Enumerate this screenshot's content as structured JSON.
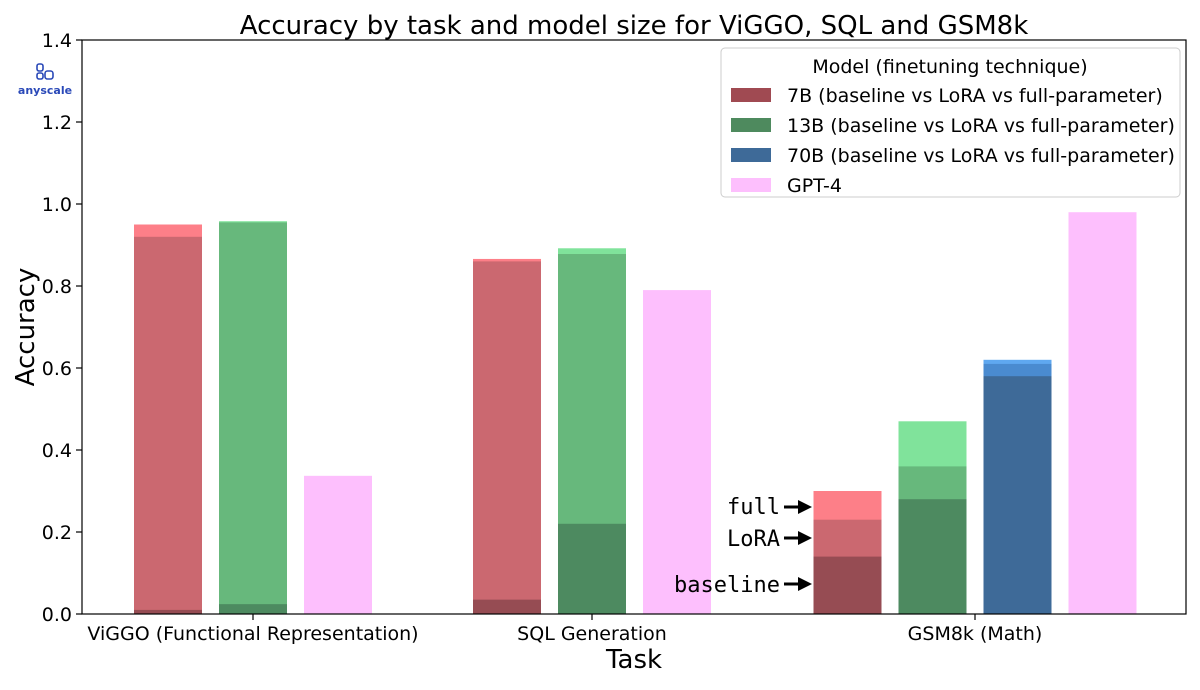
{
  "logo": {
    "text": "anyscale",
    "color": "#2a49b8"
  },
  "chart_data": {
    "type": "bar",
    "title": "Accuracy by task and model size for ViGGO, SQL and GSM8k",
    "xlabel": "Task",
    "ylabel": "Accuracy",
    "ylim": [
      0,
      1.4
    ],
    "yticks": [
      "0.0",
      "0.2",
      "0.4",
      "0.6",
      "0.8",
      "1.0",
      "1.2",
      "1.4"
    ],
    "grid": false,
    "legend_placement": "top-right",
    "legend_title": "Model (finetuning technique)",
    "categories": [
      "ViGGO (Functional Representation)",
      "SQL Generation",
      "GSM8k (Math)"
    ],
    "series": [
      {
        "name": "7B (baseline vs LoRA vs full-parameter)",
        "legend_color": "#a04a52",
        "colors": {
          "baseline": "#964c53",
          "lora": "#cb6870",
          "full": "#fd7f88"
        },
        "values": [
          {
            "baseline": 0.01,
            "lora": 0.92,
            "full": 0.95
          },
          {
            "baseline": 0.035,
            "lora": 0.86,
            "full": 0.866
          },
          {
            "baseline": 0.14,
            "lora": 0.23,
            "full": 0.3
          }
        ]
      },
      {
        "name": "13B (baseline vs LoRA vs full-parameter)",
        "legend_color": "#4e8a5e",
        "colors": {
          "baseline": "#4d8a60",
          "lora": "#67b87c",
          "full": "#80e39b"
        },
        "values": [
          {
            "baseline": 0.024,
            "lora": 0.955,
            "full": 0.958
          },
          {
            "baseline": 0.22,
            "lora": 0.878,
            "full": 0.892
          },
          {
            "baseline": 0.28,
            "lora": 0.36,
            "full": 0.47
          }
        ]
      },
      {
        "name": "70B (baseline vs LoRA vs full-parameter)",
        "legend_color": "#3e6a98",
        "colors": {
          "baseline": "#3e6a98",
          "lora": "#4a8bd0",
          "full": "#5fa8f0"
        },
        "values": [
          null,
          null,
          {
            "baseline": 0.58,
            "lora": 0.61,
            "full": 0.62
          }
        ]
      },
      {
        "name": "GPT-4",
        "legend_color": "#fdbffd",
        "colors": {
          "baseline": "#fdbffd"
        },
        "values": [
          {
            "baseline": 0.337
          },
          {
            "baseline": 0.79
          },
          {
            "baseline": 0.98
          }
        ]
      }
    ],
    "annotations": [
      {
        "text": "full",
        "points_to": "GSM8k 7B full"
      },
      {
        "text": "LoRA",
        "points_to": "GSM8k 7B LoRA"
      },
      {
        "text": "baseline",
        "points_to": "GSM8k 7B baseline"
      }
    ]
  }
}
